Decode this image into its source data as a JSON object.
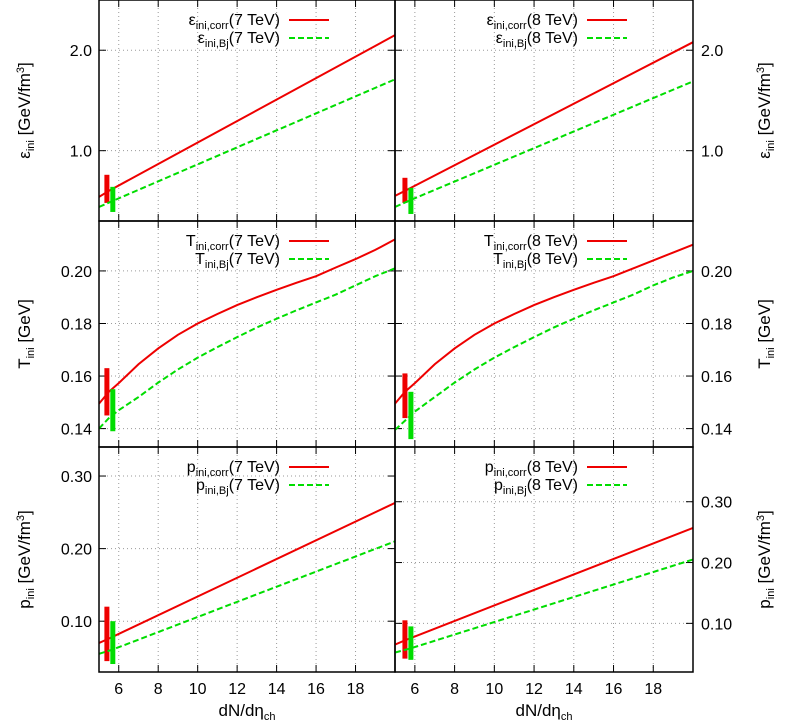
{
  "figure": {
    "xlabel": {
      "main": "dN/dη",
      "sub": "ch"
    },
    "x_ticks": [
      "6",
      "8",
      "10",
      "12",
      "14",
      "16",
      "18"
    ],
    "row_labels": [
      {
        "main": "ε",
        "sub": "ini",
        "unit": " [GeV/fm",
        "sup": "3",
        "close": "]"
      },
      {
        "main": "T",
        "sub": "ini",
        "unit": " [GeV]",
        "sup": "",
        "close": ""
      },
      {
        "main": "p",
        "sub": "ini",
        "unit": " [GeV/fm",
        "sup": "3",
        "close": "]"
      }
    ]
  },
  "colors": {
    "corr": "#ee0000",
    "bj": "#00dd00"
  },
  "chart_data": [
    {
      "type": "line",
      "panel": "epsilon-7TeV",
      "xlim": [
        5,
        20
      ],
      "ylim": [
        0.3,
        2.5
      ],
      "y_ticks": [
        "1.0",
        "2.0"
      ],
      "y_tick_values": [
        1.0,
        2.0
      ],
      "y_axis_side": "left",
      "series": [
        {
          "name": "ε_ini,corr(7 TeV)",
          "legend": {
            "main": "ε",
            "sub": "ini,corr",
            "tail": "(7 TeV)"
          },
          "style": "solid",
          "color": "#ee0000",
          "x": [
            5,
            5.5,
            20
          ],
          "y": [
            0.54,
            0.6,
            2.15
          ],
          "errorbar": {
            "x": 5.4,
            "low": 0.48,
            "high": 0.76
          }
        },
        {
          "name": "ε_ini,Bj(7 TeV)",
          "legend": {
            "main": "ε",
            "sub": "ini,Bj",
            "tail": "(7 TeV)"
          },
          "style": "dashed",
          "color": "#00dd00",
          "x": [
            5,
            5.7,
            20
          ],
          "y": [
            0.44,
            0.5,
            1.71
          ],
          "errorbar": {
            "x": 5.7,
            "low": 0.39,
            "high": 0.64
          }
        }
      ]
    },
    {
      "type": "line",
      "panel": "epsilon-8TeV",
      "xlim": [
        5,
        20
      ],
      "ylim": [
        0.3,
        2.5
      ],
      "y_ticks": [
        "1.0",
        "2.0"
      ],
      "y_tick_values": [
        1.0,
        2.0
      ],
      "y_axis_side": "right",
      "series": [
        {
          "name": "ε_ini,corr(8 TeV)",
          "legend": {
            "main": "ε",
            "sub": "ini,corr",
            "tail": "(8 TeV)"
          },
          "style": "solid",
          "color": "#ee0000",
          "x": [
            5,
            5.5,
            20
          ],
          "y": [
            0.55,
            0.6,
            2.08
          ],
          "errorbar": {
            "x": 5.5,
            "low": 0.48,
            "high": 0.73
          }
        },
        {
          "name": "ε_ini,Bj(8 TeV)",
          "legend": {
            "main": "ε",
            "sub": "ini,Bj",
            "tail": "(8 TeV)"
          },
          "style": "dashed",
          "color": "#00dd00",
          "x": [
            5,
            5.8,
            20
          ],
          "y": [
            0.44,
            0.51,
            1.69
          ],
          "errorbar": {
            "x": 5.8,
            "low": 0.37,
            "high": 0.63
          }
        }
      ]
    },
    {
      "type": "line",
      "panel": "T-7TeV",
      "xlim": [
        5,
        20
      ],
      "ylim": [
        0.133,
        0.219
      ],
      "y_ticks": [
        "0.14",
        "0.16",
        "0.18",
        "0.20"
      ],
      "y_tick_values": [
        0.14,
        0.16,
        0.18,
        0.2
      ],
      "y_axis_side": "left",
      "series": [
        {
          "name": "T_ini,corr(7 TeV)",
          "legend": {
            "main": "T",
            "sub": "ini,corr",
            "tail": "(7 TeV)"
          },
          "style": "solid",
          "color": "#ee0000",
          "x": [
            5,
            5.5,
            6,
            7,
            8,
            9,
            10,
            11,
            12,
            13,
            14,
            15,
            16,
            17,
            18,
            19,
            20
          ],
          "y": [
            0.1495,
            0.154,
            0.1573,
            0.1645,
            0.1705,
            0.1757,
            0.18,
            0.1836,
            0.187,
            0.19,
            0.1928,
            0.1955,
            0.198,
            0.2013,
            0.2045,
            0.208,
            0.212
          ],
          "errorbar": {
            "x": 5.4,
            "low": 0.145,
            "high": 0.163
          }
        },
        {
          "name": "T_ini,Bj(7 TeV)",
          "legend": {
            "main": "T",
            "sub": "ini,Bj",
            "tail": "(7 TeV)"
          },
          "style": "dashed",
          "color": "#00dd00",
          "x": [
            5,
            5.5,
            6,
            7,
            8,
            9,
            10,
            11,
            12,
            13,
            14,
            15,
            16,
            17,
            18,
            19,
            20
          ],
          "y": [
            0.14,
            0.144,
            0.147,
            0.152,
            0.1575,
            0.1625,
            0.167,
            0.171,
            0.1748,
            0.1785,
            0.1818,
            0.185,
            0.188,
            0.191,
            0.1945,
            0.198,
            0.201
          ],
          "errorbar": {
            "x": 5.7,
            "low": 0.139,
            "high": 0.155
          }
        }
      ]
    },
    {
      "type": "line",
      "panel": "T-8TeV",
      "xlim": [
        5,
        20
      ],
      "ylim": [
        0.133,
        0.219
      ],
      "y_ticks": [
        "0.14",
        "0.16",
        "0.18",
        "0.20"
      ],
      "y_tick_values": [
        0.14,
        0.16,
        0.18,
        0.2
      ],
      "y_axis_side": "right",
      "series": [
        {
          "name": "T_ini,corr(8 TeV)",
          "legend": {
            "main": "T",
            "sub": "ini,corr",
            "tail": "(8 TeV)"
          },
          "style": "solid",
          "color": "#ee0000",
          "x": [
            5,
            5.5,
            6,
            7,
            8,
            9,
            10,
            11,
            12,
            13,
            14,
            15,
            16,
            17,
            18,
            19,
            20
          ],
          "y": [
            0.1495,
            0.154,
            0.1573,
            0.1645,
            0.1705,
            0.1757,
            0.18,
            0.1836,
            0.187,
            0.19,
            0.1928,
            0.1955,
            0.198,
            0.201,
            0.204,
            0.207,
            0.21
          ],
          "errorbar": {
            "x": 5.5,
            "low": 0.144,
            "high": 0.161
          }
        },
        {
          "name": "T_ini,Bj(8 TeV)",
          "legend": {
            "main": "T",
            "sub": "ini,Bj",
            "tail": "(8 TeV)"
          },
          "style": "dashed",
          "color": "#00dd00",
          "x": [
            5,
            5.5,
            6,
            7,
            8,
            9,
            10,
            11,
            12,
            13,
            14,
            15,
            16,
            17,
            18,
            19,
            20
          ],
          "y": [
            0.1395,
            0.143,
            0.1465,
            0.152,
            0.1575,
            0.1625,
            0.167,
            0.171,
            0.1748,
            0.1785,
            0.1818,
            0.185,
            0.188,
            0.191,
            0.1945,
            0.1975,
            0.2
          ],
          "errorbar": {
            "x": 5.8,
            "low": 0.136,
            "high": 0.154
          }
        }
      ]
    },
    {
      "type": "line",
      "panel": "p-7TeV",
      "xlim": [
        5,
        20
      ],
      "ylim": [
        0.03,
        0.34
      ],
      "y_ticks": [
        "0.10",
        "0.20",
        "0.30"
      ],
      "y_tick_values": [
        0.1,
        0.2,
        0.3
      ],
      "y_axis_side": "left",
      "series": [
        {
          "name": "p_ini,corr(7 TeV)",
          "legend": {
            "main": "p",
            "sub": "ini,corr",
            "tail": "(7 TeV)"
          },
          "style": "solid",
          "color": "#ee0000",
          "x": [
            5,
            5.5,
            20
          ],
          "y": [
            0.07,
            0.076,
            0.263
          ],
          "errorbar": {
            "x": 5.4,
            "low": 0.045,
            "high": 0.12
          }
        },
        {
          "name": "p_ini,Bj(7 TeV)",
          "legend": {
            "main": "p",
            "sub": "ini,Bj",
            "tail": "(7 TeV)"
          },
          "style": "dashed",
          "color": "#00dd00",
          "x": [
            5,
            5.7,
            20
          ],
          "y": [
            0.055,
            0.061,
            0.21
          ],
          "errorbar": {
            "x": 5.7,
            "low": 0.041,
            "high": 0.1
          }
        }
      ]
    },
    {
      "type": "line",
      "panel": "p-8TeV",
      "xlim": [
        5,
        20
      ],
      "ylim": [
        0.02,
        0.39
      ],
      "y_ticks": [
        "0.10",
        "0.20",
        "0.30"
      ],
      "y_tick_values": [
        0.1,
        0.2,
        0.3
      ],
      "y_axis_side": "right",
      "series": [
        {
          "name": "p_ini,corr(8 TeV)",
          "legend": {
            "main": "p",
            "sub": "ini,corr",
            "tail": "(8 TeV)"
          },
          "style": "solid",
          "color": "#ee0000",
          "x": [
            5,
            5.5,
            20
          ],
          "y": [
            0.065,
            0.072,
            0.257
          ],
          "errorbar": {
            "x": 5.5,
            "low": 0.042,
            "high": 0.105
          }
        },
        {
          "name": "p_ini,Bj(8 TeV)",
          "legend": {
            "main": "p",
            "sub": "ini,Bj",
            "tail": "(8 TeV)"
          },
          "style": "dashed",
          "color": "#00dd00",
          "x": [
            5,
            5.8,
            20
          ],
          "y": [
            0.052,
            0.059,
            0.205
          ],
          "errorbar": {
            "x": 5.8,
            "low": 0.04,
            "high": 0.095
          }
        }
      ]
    }
  ]
}
